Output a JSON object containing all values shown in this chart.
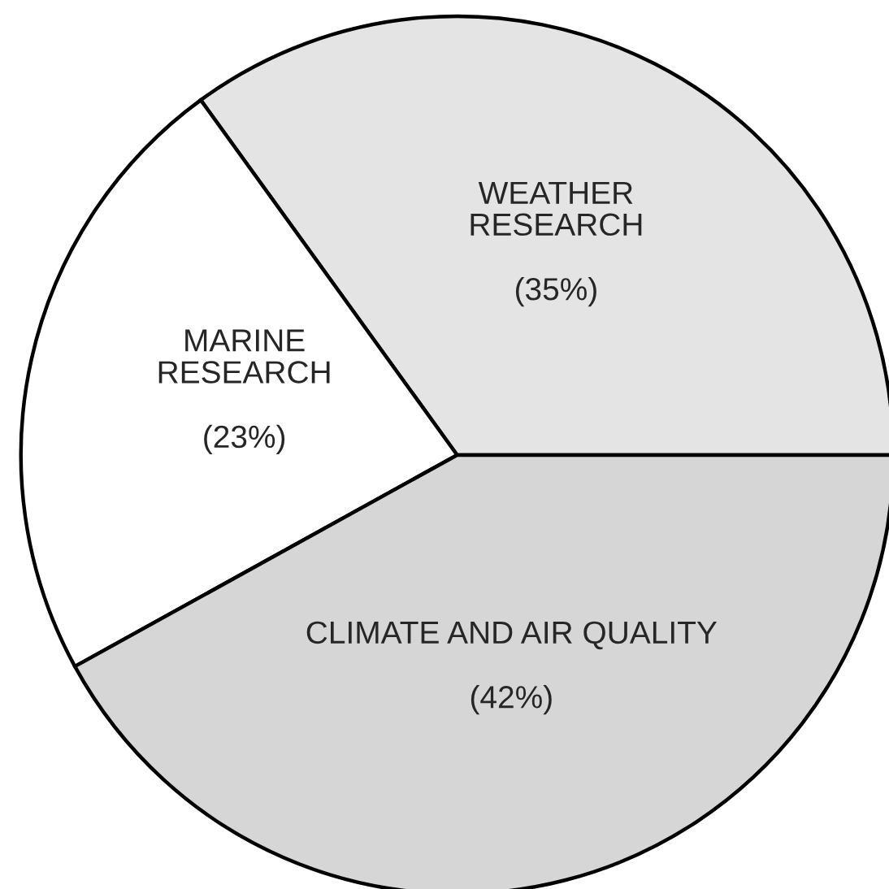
{
  "chart_data": {
    "type": "pie",
    "categories": [
      "WEATHER\nRESEARCH",
      "MARINE\nRESEARCH",
      "CLIMATE AND AIR QUALITY"
    ],
    "values": [
      35,
      23,
      42
    ],
    "value_labels": [
      "(35%)",
      "(23%)",
      "(42%)"
    ],
    "colors": [
      "#e4e4e4",
      "#ffffff",
      "#d6d6d6"
    ]
  }
}
